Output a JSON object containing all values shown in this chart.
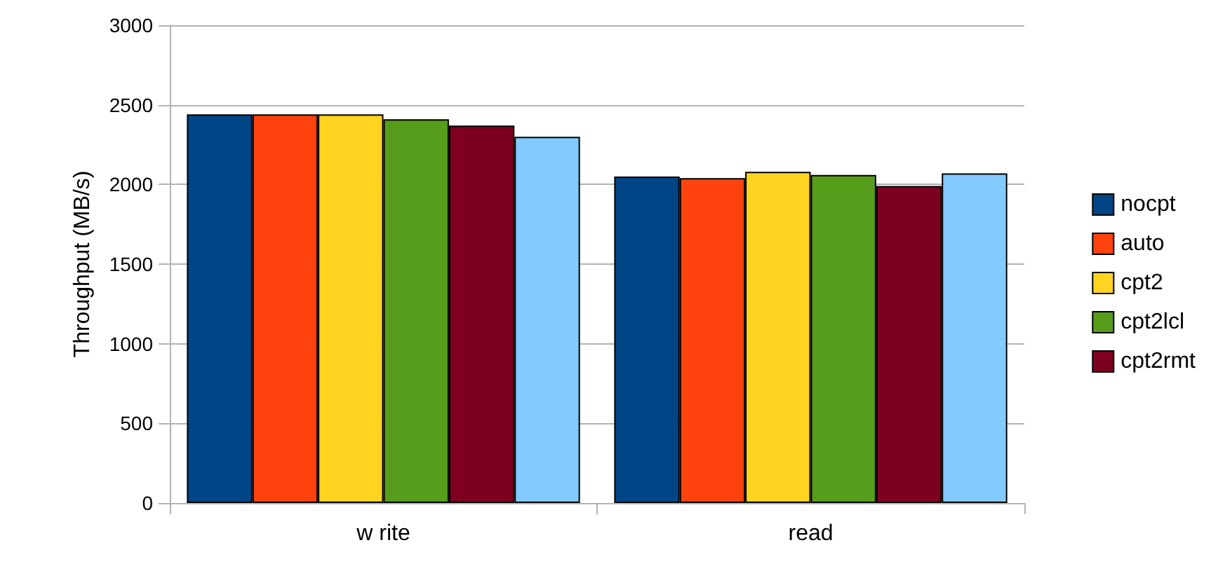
{
  "chart_data": {
    "type": "bar",
    "ylabel": "Throughput (MB/s)",
    "categories": [
      "w rite",
      "read"
    ],
    "series": [
      {
        "name": "nocpt",
        "color": "#004586",
        "values": [
          2440,
          2050
        ]
      },
      {
        "name": "auto",
        "color": "#ff420e",
        "values": [
          2440,
          2040
        ]
      },
      {
        "name": "cpt2",
        "color": "#ffd320",
        "values": [
          2440,
          2080
        ]
      },
      {
        "name": "cpt2lcl",
        "color": "#579d1c",
        "values": [
          2410,
          2060
        ]
      },
      {
        "name": "cpt2rmt",
        "color": "#7e0021",
        "values": [
          2370,
          1990
        ]
      },
      {
        "color": "#83caff",
        "values": [
          2300,
          2070
        ]
      }
    ],
    "ylim": [
      0,
      3000
    ],
    "yticks": [
      0,
      500,
      1000,
      1500,
      2000,
      2500,
      3000
    ],
    "grid": "y",
    "legend": "right"
  }
}
